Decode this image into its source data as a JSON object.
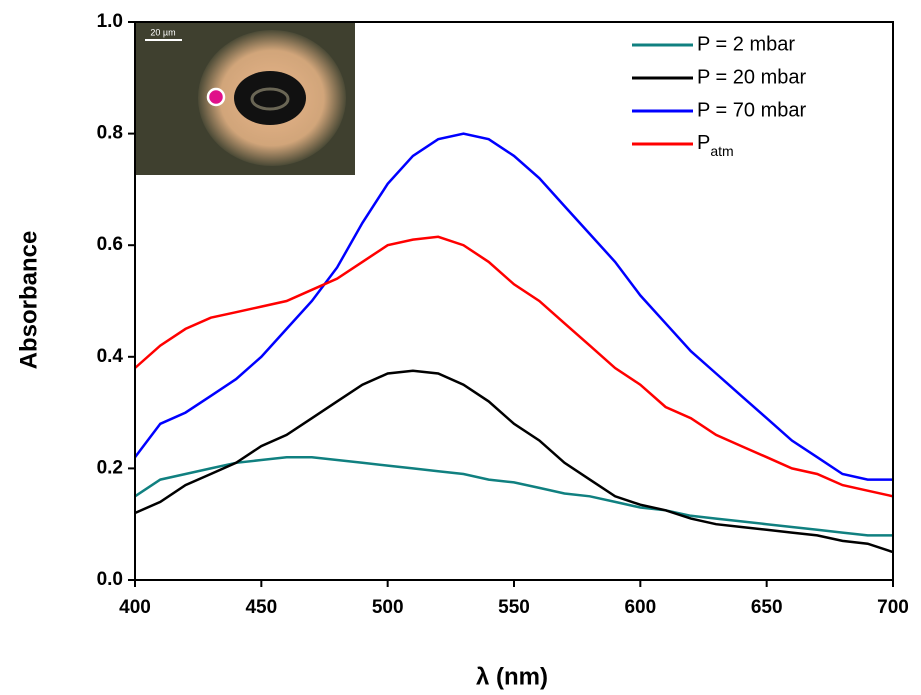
{
  "chart_data": {
    "type": "line",
    "x_label": "λ (nm)",
    "y_label": "Absorbance",
    "x": [
      400,
      410,
      420,
      430,
      440,
      450,
      460,
      470,
      480,
      490,
      500,
      510,
      520,
      530,
      540,
      550,
      560,
      570,
      580,
      590,
      600,
      610,
      620,
      630,
      640,
      650,
      660,
      670,
      680,
      690,
      700
    ],
    "series": [
      {
        "name": "P = 2 mbar",
        "color": "#108080",
        "values": [
          0.15,
          0.18,
          0.19,
          0.2,
          0.21,
          0.215,
          0.22,
          0.22,
          0.215,
          0.21,
          0.205,
          0.2,
          0.195,
          0.19,
          0.18,
          0.175,
          0.165,
          0.155,
          0.15,
          0.14,
          0.13,
          0.125,
          0.115,
          0.11,
          0.105,
          0.1,
          0.095,
          0.09,
          0.085,
          0.08,
          0.08
        ]
      },
      {
        "name": "P = 20 mbar",
        "color": "#000000",
        "values": [
          0.12,
          0.14,
          0.17,
          0.19,
          0.21,
          0.24,
          0.26,
          0.29,
          0.32,
          0.35,
          0.37,
          0.375,
          0.37,
          0.35,
          0.32,
          0.28,
          0.25,
          0.21,
          0.18,
          0.15,
          0.135,
          0.125,
          0.11,
          0.1,
          0.095,
          0.09,
          0.085,
          0.08,
          0.07,
          0.065,
          0.05
        ]
      },
      {
        "name": "P = 70 mbar",
        "color": "#0000ff",
        "values": [
          0.22,
          0.28,
          0.3,
          0.33,
          0.36,
          0.4,
          0.45,
          0.5,
          0.56,
          0.64,
          0.71,
          0.76,
          0.79,
          0.8,
          0.79,
          0.76,
          0.72,
          0.67,
          0.62,
          0.57,
          0.51,
          0.46,
          0.41,
          0.37,
          0.33,
          0.29,
          0.25,
          0.22,
          0.19,
          0.18,
          0.18
        ]
      },
      {
        "name": "Patm",
        "color": "#ff0000",
        "values": [
          0.38,
          0.42,
          0.45,
          0.47,
          0.48,
          0.49,
          0.5,
          0.52,
          0.54,
          0.57,
          0.6,
          0.61,
          0.615,
          0.6,
          0.57,
          0.53,
          0.5,
          0.46,
          0.42,
          0.38,
          0.35,
          0.31,
          0.29,
          0.26,
          0.24,
          0.22,
          0.2,
          0.19,
          0.17,
          0.16,
          0.15
        ]
      }
    ],
    "xlim": [
      400,
      700
    ],
    "xticks": [
      400,
      450,
      500,
      550,
      600,
      650,
      700
    ],
    "ylim": [
      0,
      1
    ],
    "yticks": [
      {
        "value": 0,
        "label": "0.0"
      },
      0.2,
      0.4,
      0.6,
      0.8,
      {
        "value": 1,
        "label": "1.0"
      }
    ],
    "legend": "top-right",
    "inset": {
      "scale_label": "20 µm"
    }
  }
}
